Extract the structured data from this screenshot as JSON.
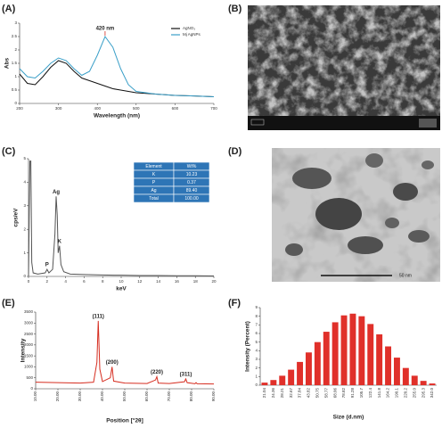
{
  "panels": [
    "(A)",
    "(B)",
    "(C)",
    "(D)",
    "(E)",
    "(F)"
  ],
  "images": [
    {
      "scale": "50 nm"
    }
  ],
  "chart_data": [
    {
      "type": "line",
      "xlabel": "Wavelength (nm)",
      "ylabel": "Abs",
      "x": [
        200,
        220,
        240,
        260,
        280,
        300,
        320,
        340,
        360,
        380,
        400,
        420,
        440,
        460,
        480,
        500,
        550,
        600,
        650,
        700
      ],
      "series": [
        {
          "name": "AgNO₃",
          "color": "#111111",
          "values": [
            1.1,
            0.75,
            0.7,
            1.0,
            1.35,
            1.6,
            1.5,
            1.2,
            0.95,
            0.85,
            0.75,
            0.65,
            0.55,
            0.5,
            0.45,
            0.4,
            0.35,
            0.3,
            0.28,
            0.25
          ]
        },
        {
          "name": "Mj AgNPs",
          "color": "#3a9fc8",
          "values": [
            1.3,
            1.0,
            0.95,
            1.2,
            1.5,
            1.7,
            1.6,
            1.3,
            1.05,
            1.2,
            1.8,
            2.5,
            2.1,
            1.3,
            0.7,
            0.45,
            0.35,
            0.3,
            0.28,
            0.25
          ]
        }
      ],
      "xlim": [
        200,
        700
      ],
      "xticks": [
        200,
        300,
        400,
        500,
        600,
        700
      ],
      "ylim": [
        0,
        3
      ],
      "yticks": [
        0,
        0.5,
        1,
        1.5,
        2,
        2.5,
        3
      ],
      "annotations": [
        {
          "text": "420 nm",
          "x": 420
        }
      ],
      "legend": "upper-right"
    },
    {
      "type": "line",
      "xlabel": "keV",
      "ylabel": "cps/eV",
      "color": "#555555",
      "x": [
        0,
        0.15,
        0.25,
        0.35,
        0.5,
        1,
        1.8,
        2.0,
        2.2,
        2.6,
        2.85,
        2.98,
        3.1,
        3.2,
        3.35,
        3.5,
        3.8,
        4.5,
        6,
        8,
        10,
        12,
        14,
        16,
        18,
        20
      ],
      "values": [
        0,
        4.9,
        4.9,
        0.6,
        0.15,
        0.1,
        0.15,
        0.3,
        0.15,
        0.3,
        1.8,
        3.4,
        2.6,
        1.0,
        1.3,
        0.5,
        0.2,
        0.1,
        0.08,
        0.06,
        0.05,
        0.04,
        0.04,
        0.03,
        0.03,
        0.02
      ],
      "xlim": [
        0,
        20
      ],
      "xticks": [
        0,
        2,
        4,
        6,
        8,
        10,
        12,
        14,
        16,
        18,
        20
      ],
      "ylim": [
        0,
        5
      ],
      "yticks": [
        0,
        1,
        2,
        3,
        4,
        5
      ],
      "annotations": [
        {
          "text": "Ag",
          "x": 2.98
        },
        {
          "text": "P",
          "x": 2.0
        },
        {
          "text": "K",
          "x": 3.35
        }
      ],
      "table": {
        "header": [
          "Element",
          "Wt%"
        ],
        "rows": [
          [
            "K",
            "10.23"
          ],
          [
            "P",
            "0.37"
          ],
          [
            "Ag",
            "89.40"
          ],
          [
            "Total",
            "100.00"
          ]
        ]
      }
    },
    {
      "type": "line",
      "xlabel": "Position [°2θ]",
      "ylabel": "Intensity",
      "color": "#d62d20",
      "x": [
        10,
        20,
        30,
        36,
        37.5,
        38.1,
        38.8,
        40,
        43.5,
        44.3,
        45,
        50,
        60,
        63.8,
        64.4,
        65,
        70,
        76.8,
        77.4,
        78,
        81.5,
        82,
        82.5,
        90
      ],
      "values": [
        300,
        280,
        260,
        300,
        1200,
        3100,
        900,
        330,
        500,
        1000,
        350,
        260,
        240,
        400,
        550,
        260,
        240,
        320,
        450,
        280,
        230,
        280,
        230,
        220
      ],
      "xlim": [
        10,
        90
      ],
      "xticks": [
        {
          "value": 10,
          "label": "10.00"
        },
        {
          "value": 20,
          "label": "20.00"
        },
        {
          "value": 30,
          "label": "30.00"
        },
        {
          "value": 40,
          "label": "40.00"
        },
        {
          "value": 50,
          "label": "50.00"
        },
        {
          "value": 60,
          "label": "60.00"
        },
        {
          "value": 70,
          "label": "70.00"
        },
        {
          "value": 80,
          "label": "80.00"
        },
        {
          "value": 90,
          "label": "90.00"
        }
      ],
      "ylim": [
        0,
        3500
      ],
      "yticks": [
        0,
        500,
        1000,
        1500,
        2000,
        2500,
        3000,
        3500
      ],
      "annotations": [
        {
          "text": "(111)",
          "x": 38.1
        },
        {
          "text": "(200)",
          "x": 44.3
        },
        {
          "text": "(220)",
          "x": 64.4
        },
        {
          "text": "(311)",
          "x": 77.4
        }
      ]
    },
    {
      "type": "bar",
      "xlabel": "Size (d.nm)",
      "ylabel": "Intensity (Percent)",
      "color": "#e0302a",
      "categories": [
        "21.04",
        "24.36",
        "28.21",
        "32.67",
        "37.84",
        "43.82",
        "50.75",
        "58.77",
        "68.06",
        "78.82",
        "91.28",
        "105.7",
        "122.4",
        "141.8",
        "164.2",
        "190.1",
        "220.2",
        "255.0",
        "295.3",
        "342.0"
      ],
      "values": [
        0.3,
        0.6,
        1.1,
        1.8,
        2.7,
        3.8,
        5.0,
        6.2,
        7.3,
        8.1,
        8.3,
        8.0,
        7.1,
        5.9,
        4.5,
        3.2,
        2.0,
        1.1,
        0.5,
        0.2
      ],
      "ylim": [
        0,
        9
      ],
      "yticks": [
        0,
        1,
        2,
        3,
        4,
        5,
        6,
        7,
        8,
        9
      ]
    }
  ]
}
